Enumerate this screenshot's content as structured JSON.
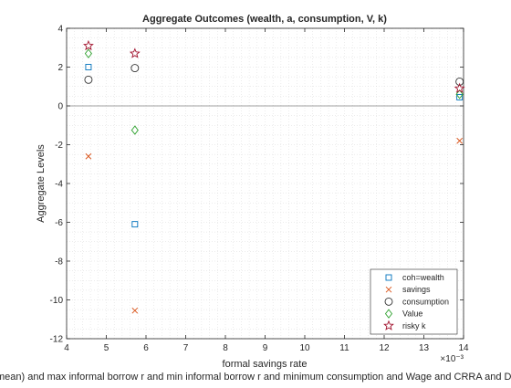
{
  "chart_data": {
    "type": "scatter",
    "title": "Aggregate Outcomes (wealth, a, consumption, V, k)",
    "xlabel": "formal savings rate",
    "ylabel": "Aggregate Levels",
    "x_exponent_label": "×10⁻³",
    "caption": "mean) and max informal borrow r and min informal borrow r and minimum consumption and Wage and CRRA and D",
    "xlim": [
      4,
      14
    ],
    "ylim": [
      -12,
      4
    ],
    "xticks": [
      4,
      5,
      6,
      7,
      8,
      9,
      10,
      11,
      12,
      13,
      14
    ],
    "yticks": [
      -12,
      -10,
      -8,
      -6,
      -4,
      -2,
      0,
      2,
      4
    ],
    "grid": "minor-dotted",
    "zero_line": true,
    "legend_position": "bottom-right",
    "x": [
      4.55,
      5.72,
      13.9
    ],
    "series": [
      {
        "name": "coh=wealth",
        "marker": "square",
        "color": "#0072BD",
        "values": [
          2.0,
          -6.1,
          0.45
        ]
      },
      {
        "name": "savings",
        "marker": "x",
        "color": "#D95319",
        "values": [
          -2.6,
          -10.55,
          -1.8
        ]
      },
      {
        "name": "consumption",
        "marker": "circle",
        "color": "#333333",
        "values": [
          1.35,
          1.95,
          1.25
        ]
      },
      {
        "name": "Value",
        "marker": "diamond",
        "color": "#2CA02C",
        "values": [
          2.7,
          -1.25,
          0.6
        ]
      },
      {
        "name": "risky k",
        "marker": "star",
        "color": "#A2142F",
        "values": [
          3.1,
          2.7,
          0.9
        ]
      }
    ]
  }
}
